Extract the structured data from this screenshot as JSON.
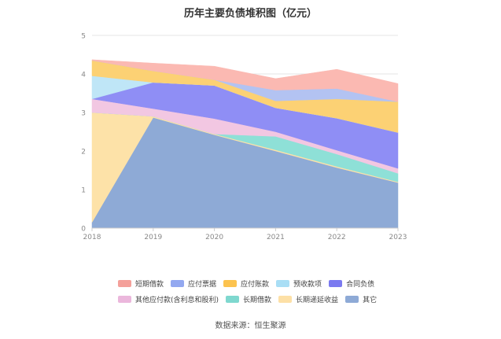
{
  "chart_data": {
    "type": "area",
    "stacked": true,
    "title": "历年主要负债堆积图（亿元）",
    "x": [
      "2018",
      "2019",
      "2020",
      "2021",
      "2022",
      "2023"
    ],
    "ylim": [
      0,
      5
    ],
    "yticks": [
      "0",
      "1",
      "2",
      "3",
      "4",
      "5"
    ],
    "grid": true,
    "legend_position": "bottom",
    "series": [
      {
        "name": "其它",
        "color": "#8eaad6",
        "values": [
          0.15,
          2.87,
          2.42,
          2.0,
          1.57,
          1.18
        ]
      },
      {
        "name": "长期递延收益",
        "color": "#fde2a8",
        "values": [
          2.85,
          0.03,
          0.02,
          0.03,
          0.03,
          0.02
        ]
      },
      {
        "name": "长期借款",
        "color": "#8ee0d7",
        "values": [
          0.0,
          0.0,
          0.0,
          0.35,
          0.32,
          0.22
        ]
      },
      {
        "name": "其他应付款(含利息和股利)",
        "color": "#f2c7e2",
        "values": [
          0.35,
          0.2,
          0.4,
          0.12,
          0.1,
          0.13
        ]
      },
      {
        "name": "合同负债",
        "color": "#8f8ef5",
        "values": [
          0.0,
          0.68,
          0.86,
          0.62,
          0.83,
          0.93
        ]
      },
      {
        "name": "预收款项",
        "color": "#bfe6f7",
        "values": [
          0.6,
          0.0,
          0.0,
          0.0,
          0.0,
          0.0
        ]
      },
      {
        "name": "应付账款",
        "color": "#fcd174",
        "values": [
          0.4,
          0.3,
          0.15,
          0.18,
          0.5,
          0.8
        ]
      },
      {
        "name": "应付票据",
        "color": "#b3c3f2",
        "values": [
          0.0,
          0.0,
          0.0,
          0.28,
          0.27,
          0.0
        ]
      },
      {
        "name": "短期借款",
        "color": "#fbb9b2",
        "values": [
          0.02,
          0.2,
          0.35,
          0.3,
          0.5,
          0.47
        ]
      }
    ]
  },
  "legend": {
    "rows": [
      [
        {
          "label": "短期借款",
          "color": "#f4a09a"
        },
        {
          "label": "应付票据",
          "color": "#93a8f0"
        },
        {
          "label": "应付账款",
          "color": "#fcc34f"
        },
        {
          "label": "预收款项",
          "color": "#a9def5"
        },
        {
          "label": "合同负债",
          "color": "#7b7af0"
        }
      ],
      [
        {
          "label": "其他应付款(含利息和股利)",
          "color": "#ebb7dc"
        },
        {
          "label": "长期借款",
          "color": "#7fd8cf"
        },
        {
          "label": "长期递延收益",
          "color": "#fde0a6"
        },
        {
          "label": "其它",
          "color": "#8eaad6"
        }
      ]
    ]
  },
  "source": "数据来源：恒生聚源"
}
